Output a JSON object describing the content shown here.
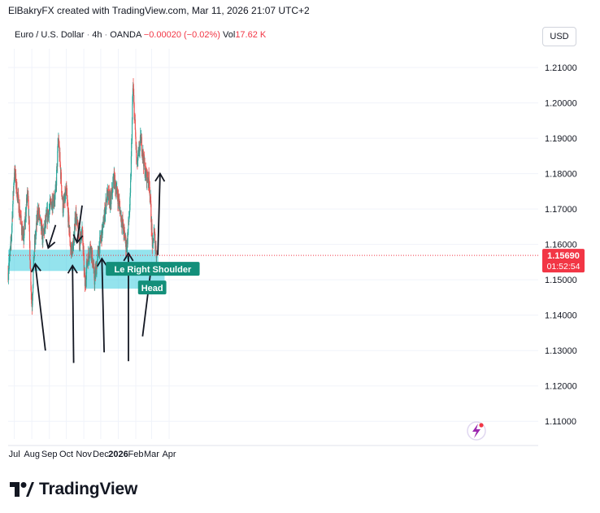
{
  "header": {
    "attribution": "ElBakryFX created with TradingView.com, Mar 11, 2026 21:07 UTC+2"
  },
  "symbol": {
    "name": "Euro / U.S. Dollar",
    "interval": "4h",
    "exchange": "OANDA",
    "change": "−0.00020 (−0.02%)",
    "volume_label": "Vol",
    "volume_value": "17.62 K"
  },
  "currency_button": "USD",
  "brand": "TradingView",
  "colors": {
    "up": "#26a69a",
    "down": "#ef5350",
    "zone": "#4dd0e1",
    "label_bg": "#138f7a",
    "price_tag": "#f23645"
  },
  "chart_data": {
    "type": "candlestick",
    "x_ticks": [
      "Jul",
      "Aug",
      "Sep",
      "Oct",
      "Nov",
      "Dec",
      "2026",
      "Feb",
      "Mar",
      "Apr"
    ],
    "y_ticks": [
      "1.21000",
      "1.20000",
      "1.19000",
      "1.18000",
      "1.17000",
      "1.16000",
      "1.15000",
      "1.14000",
      "1.13000",
      "1.12000",
      "1.11000"
    ],
    "ylim": [
      1.105,
      1.213
    ],
    "last_price": "1.15690",
    "countdown": "01:52:54",
    "price_path": [
      [
        "2025-06-20",
        1.152
      ],
      [
        "2025-06-25",
        1.16
      ],
      [
        "2025-07-01",
        1.181
      ],
      [
        "2025-07-08",
        1.172
      ],
      [
        "2025-07-17",
        1.161
      ],
      [
        "2025-07-25",
        1.176
      ],
      [
        "2025-07-29",
        1.155
      ],
      [
        "2025-08-01",
        1.142
      ],
      [
        "2025-08-05",
        1.158
      ],
      [
        "2025-08-12",
        1.17
      ],
      [
        "2025-08-20",
        1.162
      ],
      [
        "2025-08-28",
        1.168
      ],
      [
        "2025-09-05",
        1.172
      ],
      [
        "2025-09-12",
        1.174
      ],
      [
        "2025-09-17",
        1.19
      ],
      [
        "2025-09-25",
        1.17
      ],
      [
        "2025-10-01",
        1.175
      ],
      [
        "2025-10-09",
        1.158
      ],
      [
        "2025-10-14",
        1.16
      ],
      [
        "2025-10-17",
        1.169
      ],
      [
        "2025-10-24",
        1.161
      ],
      [
        "2025-10-29",
        1.164
      ],
      [
        "2025-11-03",
        1.148
      ],
      [
        "2025-11-06",
        1.154
      ],
      [
        "2025-11-13",
        1.16
      ],
      [
        "2025-11-20",
        1.15
      ],
      [
        "2025-11-28",
        1.159
      ],
      [
        "2025-12-05",
        1.165
      ],
      [
        "2025-12-12",
        1.174
      ],
      [
        "2025-12-19",
        1.172
      ],
      [
        "2025-12-24",
        1.179
      ],
      [
        "2026-01-02",
        1.172
      ],
      [
        "2026-01-09",
        1.165
      ],
      [
        "2026-01-16",
        1.159
      ],
      [
        "2026-01-22",
        1.172
      ],
      [
        "2026-01-27",
        1.205
      ],
      [
        "2026-02-03",
        1.182
      ],
      [
        "2026-02-10",
        1.19
      ],
      [
        "2026-02-18",
        1.18
      ],
      [
        "2026-02-25",
        1.178
      ],
      [
        "2026-03-03",
        1.158
      ],
      [
        "2026-03-05",
        1.164
      ],
      [
        "2026-03-09",
        1.158
      ],
      [
        "2026-03-11",
        1.1569
      ]
    ],
    "zones": [
      {
        "from": "2025-06-20",
        "to": "2026-03-13",
        "low": 1.1525,
        "high": 1.1585
      },
      {
        "from": "2025-11-03",
        "to": "2026-03-24",
        "low": 1.1475,
        "high": 1.1525
      }
    ],
    "annotations": [
      {
        "text": "Le Right Shoulder",
        "date": "2026-03-03",
        "price": 1.153
      },
      {
        "text": "Head",
        "date": "2026-03-02",
        "price": 1.1477
      }
    ],
    "arrows": [
      {
        "tail": [
          "2025-08-25",
          1.13
        ],
        "head": [
          "2025-08-07",
          1.1545
        ]
      },
      {
        "tail": [
          "2025-09-12",
          1.1655
        ],
        "head": [
          "2025-08-30",
          1.159
        ]
      },
      {
        "tail": [
          "2025-10-14",
          1.1265
        ],
        "head": [
          "2025-10-12",
          1.154
        ]
      },
      {
        "tail": [
          "2025-10-29",
          1.171
        ],
        "head": [
          "2025-10-20",
          1.1605
        ]
      },
      {
        "tail": [
          "2025-12-07",
          1.1295
        ],
        "head": [
          "2025-12-03",
          1.156
        ]
      },
      {
        "tail": [
          "2026-01-19",
          1.127
        ],
        "head": [
          "2026-01-19",
          1.1575
        ]
      },
      {
        "tail": [
          "2026-02-13",
          1.134
        ],
        "head": [
          "2026-03-01",
          1.1545
        ]
      },
      {
        "tail": [
          "2026-03-12",
          1.157
        ],
        "head": [
          "2026-03-16",
          1.18
        ]
      }
    ]
  }
}
